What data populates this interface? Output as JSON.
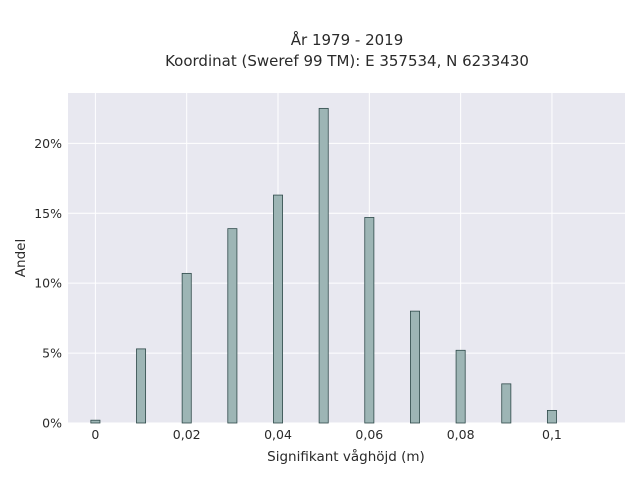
{
  "chart_data": {
    "type": "bar",
    "title_line1": "År 1979 - 2019",
    "title_line2": "Koordinat (Sweref 99 TM): E 357534, N 6233430",
    "xlabel": "Signifikant våghöjd (m)",
    "ylabel": "Andel",
    "xlim": [
      -0.006,
      0.116
    ],
    "ylim": [
      0,
      0.236
    ],
    "x_ticks": [
      {
        "value": 0,
        "label": "0"
      },
      {
        "value": 0.02,
        "label": "0,02"
      },
      {
        "value": 0.04,
        "label": "0,04"
      },
      {
        "value": 0.06,
        "label": "0,06"
      },
      {
        "value": 0.08,
        "label": "0,08"
      },
      {
        "value": 0.1,
        "label": "0,1"
      }
    ],
    "y_ticks": [
      {
        "value": 0,
        "label": "0%"
      },
      {
        "value": 0.05,
        "label": "5%"
      },
      {
        "value": 0.1,
        "label": "10%"
      },
      {
        "value": 0.15,
        "label": "15%"
      },
      {
        "value": 0.2,
        "label": "20%"
      }
    ],
    "bin_width": 0.002,
    "x": [
      0,
      0.01,
      0.02,
      0.03,
      0.04,
      0.05,
      0.06,
      0.07,
      0.08,
      0.09,
      0.1
    ],
    "values": [
      0.002,
      0.053,
      0.107,
      0.139,
      0.163,
      0.225,
      0.147,
      0.08,
      0.052,
      0.028,
      0.009
    ],
    "grid": true,
    "colors": {
      "plot_bg": "#e8e8f0",
      "grid": "#ffffff",
      "bar_fill": "#9db5b5",
      "bar_stroke": "#2f4a4a"
    }
  }
}
